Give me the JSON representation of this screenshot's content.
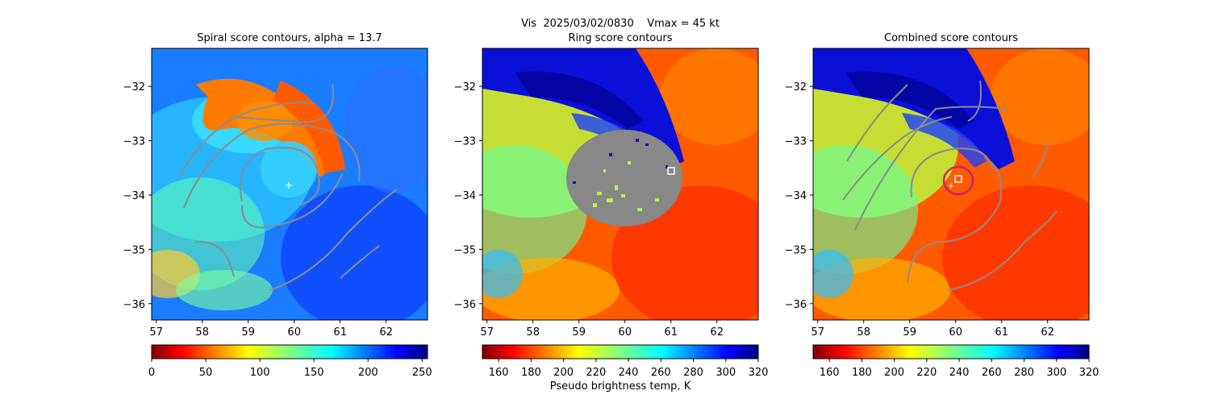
{
  "suptitle": "Vis  2025/03/02/0830    Vmax = 45 kt",
  "xlabel": "",
  "ylabel": "",
  "colorbar_label": "Pseudo brightness temp, K",
  "chart_data": [
    {
      "type": "heatmap",
      "title": "Spiral score contours, alpha = 13.7",
      "xticks": [
        57,
        58,
        59,
        60,
        61,
        62
      ],
      "yticks": [
        -32,
        -33,
        -34,
        -35,
        -36
      ],
      "xlim": [
        56.9,
        62.9
      ],
      "ylim": [
        -36.3,
        -31.3
      ],
      "colorbar": {
        "ticks": [
          0,
          50,
          100,
          150,
          200,
          250
        ],
        "range": [
          0,
          255
        ],
        "reversed": true
      },
      "center_marker": {
        "x": 59.9,
        "y": -33.8
      },
      "overlay": "spiral contours"
    },
    {
      "type": "heatmap",
      "title": "Ring score contours",
      "xticks": [
        57,
        58,
        59,
        60,
        61,
        62
      ],
      "yticks": [
        -32,
        -33,
        -34,
        -35,
        -36
      ],
      "xlim": [
        56.9,
        62.9
      ],
      "ylim": [
        -36.3,
        -31.3
      ],
      "colorbar": {
        "ticks": [
          160,
          180,
          200,
          220,
          240,
          260,
          280,
          300,
          320
        ],
        "range": [
          150,
          320
        ]
      },
      "center_marker": {
        "x": 61.0,
        "y": -33.55
      },
      "overlay": "masked ring region"
    },
    {
      "type": "heatmap",
      "title": "Combined score contours",
      "xticks": [
        57,
        58,
        59,
        60,
        61,
        62
      ],
      "yticks": [
        -32,
        -33,
        -34,
        -35,
        -36
      ],
      "xlim": [
        56.9,
        62.9
      ],
      "ylim": [
        -36.3,
        -31.3
      ],
      "colorbar": {
        "ticks": [
          160,
          180,
          200,
          220,
          240,
          260,
          280,
          300,
          320
        ],
        "range": [
          150,
          320
        ]
      },
      "center_marker": {
        "x": 60.1,
        "y": -33.7
      },
      "overlay": "combined contours"
    }
  ]
}
